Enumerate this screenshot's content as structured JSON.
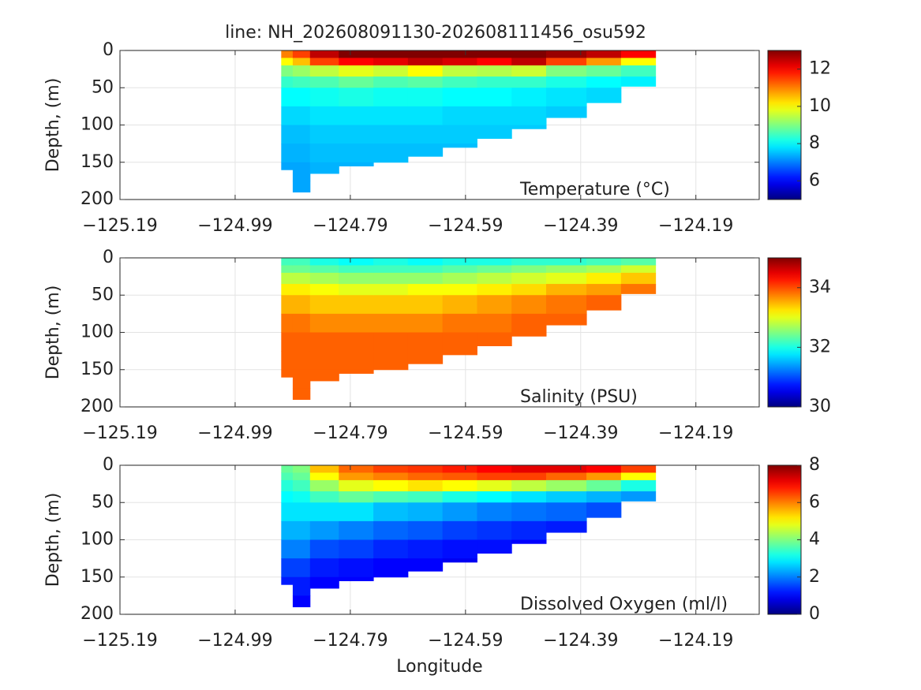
{
  "chart_data": [
    {
      "type": "section",
      "title": "line: NH_202608091130-202608111456_osu592",
      "label": "Temperature (°C)",
      "ylabel": "Depth, (m)",
      "colormap": "jet",
      "grid": true,
      "xlim": [
        -125.19,
        -124.08
      ],
      "ylim": [
        200,
        0
      ],
      "clim": [
        5,
        13
      ],
      "xticks": [
        {
          "value": -125.19,
          "label": "−125.19"
        },
        {
          "value": -124.99,
          "label": "−124.99"
        },
        {
          "value": -124.79,
          "label": "−124.79"
        },
        {
          "value": -124.59,
          "label": "−124.59"
        },
        {
          "value": -124.39,
          "label": "−124.39"
        },
        {
          "value": -124.19,
          "label": "−124.19"
        }
      ],
      "yticks": [
        0,
        50,
        100,
        150,
        200
      ],
      "cticks": [
        6,
        8,
        10,
        12
      ],
      "x": [
        -124.91,
        -124.89,
        -124.86,
        -124.81,
        -124.75,
        -124.69,
        -124.63,
        -124.57,
        -124.51,
        -124.45,
        -124.38,
        -124.32
      ],
      "bottom": [
        160,
        190,
        165,
        155,
        150,
        142,
        130,
        118,
        105,
        90,
        70,
        48
      ],
      "depths": [
        0,
        10,
        20,
        35,
        50,
        75,
        100,
        125,
        150,
        175
      ],
      "values": [
        [
          11,
          10,
          9.0,
          8.4,
          8.0,
          7.7,
          7.5,
          7.4,
          7.3,
          null
        ],
        [
          11.5,
          10.5,
          9.2,
          8.5,
          8.0,
          7.7,
          7.5,
          7.4,
          7.3,
          7.3
        ],
        [
          12.5,
          11.5,
          9.5,
          8.6,
          8.1,
          7.8,
          7.6,
          7.5,
          7.4,
          null
        ],
        [
          13,
          12,
          9.8,
          8.8,
          8.2,
          7.8,
          7.6,
          7.5,
          7.4,
          null
        ],
        [
          13,
          12.2,
          9.6,
          8.6,
          8.1,
          7.8,
          7.6,
          7.5,
          null,
          null
        ],
        [
          13,
          12.5,
          10,
          8.7,
          8.1,
          7.8,
          7.6,
          7.5,
          null,
          null
        ],
        [
          13,
          12.3,
          9.5,
          8.5,
          8.0,
          7.7,
          7.6,
          7.5,
          null,
          null
        ],
        [
          13,
          12,
          9.4,
          8.4,
          8.0,
          7.7,
          7.6,
          null,
          null,
          null
        ],
        [
          13,
          12.5,
          9.6,
          8.4,
          7.9,
          7.7,
          7.6,
          null,
          null,
          null
        ],
        [
          12.8,
          11.5,
          9.0,
          8.2,
          7.8,
          7.6,
          null,
          null,
          null,
          null
        ],
        [
          12.5,
          10.8,
          8.8,
          8.0,
          7.7,
          null,
          null,
          null,
          null,
          null
        ],
        [
          12,
          10,
          8.5,
          7.9,
          null,
          null,
          null,
          null,
          null,
          null
        ]
      ]
    },
    {
      "type": "section",
      "label": "Salinity (PSU)",
      "ylabel": "Depth, (m)",
      "colormap": "jet",
      "grid": true,
      "xlim": [
        -125.19,
        -124.08
      ],
      "ylim": [
        200,
        0
      ],
      "clim": [
        30,
        35
      ],
      "xticks": [
        {
          "value": -125.19,
          "label": "−125.19"
        },
        {
          "value": -124.99,
          "label": "−124.99"
        },
        {
          "value": -124.79,
          "label": "−124.79"
        },
        {
          "value": -124.59,
          "label": "−124.59"
        },
        {
          "value": -124.39,
          "label": "−124.39"
        },
        {
          "value": -124.19,
          "label": "−124.19"
        }
      ],
      "yticks": [
        0,
        50,
        100,
        150,
        200
      ],
      "cticks": [
        30,
        32,
        34
      ],
      "x": [
        -124.91,
        -124.89,
        -124.86,
        -124.81,
        -124.75,
        -124.69,
        -124.63,
        -124.57,
        -124.51,
        -124.45,
        -124.38,
        -124.32
      ],
      "bottom": [
        160,
        190,
        165,
        155,
        150,
        142,
        130,
        118,
        105,
        90,
        70,
        48
      ],
      "depths": [
        0,
        10,
        20,
        35,
        50,
        75,
        100,
        125,
        150,
        175
      ],
      "values": [
        [
          32.2,
          32.4,
          32.8,
          33.2,
          33.5,
          33.8,
          33.9,
          33.9,
          33.9,
          null
        ],
        [
          32.2,
          32.4,
          32.8,
          33.2,
          33.5,
          33.8,
          33.9,
          33.9,
          33.9,
          33.9
        ],
        [
          32.0,
          32.3,
          32.7,
          33.1,
          33.4,
          33.7,
          33.9,
          33.9,
          33.9,
          null
        ],
        [
          31.9,
          32.2,
          32.6,
          33.0,
          33.4,
          33.7,
          33.9,
          33.9,
          33.9,
          null
        ],
        [
          32.0,
          32.2,
          32.6,
          33.0,
          33.4,
          33.7,
          33.9,
          33.9,
          null,
          null
        ],
        [
          31.9,
          32.2,
          32.6,
          33.1,
          33.4,
          33.7,
          33.9,
          33.9,
          null,
          null
        ],
        [
          32.0,
          32.3,
          32.7,
          33.1,
          33.5,
          33.8,
          33.9,
          33.9,
          null,
          null
        ],
        [
          32.0,
          32.4,
          32.8,
          33.2,
          33.6,
          33.8,
          33.9,
          null,
          null,
          null
        ],
        [
          32.1,
          32.5,
          32.9,
          33.3,
          33.7,
          33.9,
          33.9,
          null,
          null,
          null
        ],
        [
          32.1,
          32.6,
          33.0,
          33.5,
          33.8,
          33.9,
          null,
          null,
          null,
          null
        ],
        [
          32.2,
          32.7,
          33.2,
          33.6,
          33.9,
          null,
          null,
          null,
          null,
          null
        ],
        [
          32.3,
          32.9,
          33.4,
          33.8,
          null,
          null,
          null,
          null,
          null,
          null
        ]
      ]
    },
    {
      "type": "section",
      "label": "Dissolved Oxygen (ml/l)",
      "ylabel": "Depth, (m)",
      "xlabel": "Longitude",
      "colormap": "jet",
      "grid": true,
      "xlim": [
        -125.19,
        -124.08
      ],
      "ylim": [
        200,
        0
      ],
      "clim": [
        0,
        8
      ],
      "xticks": [
        {
          "value": -125.19,
          "label": "−125.19"
        },
        {
          "value": -124.99,
          "label": "−124.99"
        },
        {
          "value": -124.79,
          "label": "−124.79"
        },
        {
          "value": -124.59,
          "label": "−124.59"
        },
        {
          "value": -124.39,
          "label": "−124.39"
        },
        {
          "value": -124.19,
          "label": "−124.19"
        }
      ],
      "yticks": [
        0,
        50,
        100,
        150,
        200
      ],
      "cticks": [
        0,
        2,
        4,
        6,
        8
      ],
      "x": [
        -124.91,
        -124.89,
        -124.86,
        -124.81,
        -124.75,
        -124.69,
        -124.63,
        -124.57,
        -124.51,
        -124.45,
        -124.38,
        -124.32
      ],
      "bottom": [
        160,
        190,
        165,
        155,
        150,
        142,
        130,
        118,
        105,
        90,
        70,
        48
      ],
      "depths": [
        0,
        10,
        20,
        35,
        50,
        75,
        100,
        125,
        150,
        175
      ],
      "values": [
        [
          3.8,
          3.6,
          3.3,
          3.0,
          2.8,
          2.4,
          2.0,
          1.5,
          1.2,
          null
        ],
        [
          4.0,
          3.8,
          3.5,
          3.1,
          2.8,
          2.4,
          2.0,
          1.5,
          1.2,
          1.0
        ],
        [
          5.5,
          5.0,
          4.2,
          3.5,
          2.8,
          2.2,
          1.6,
          1.2,
          1.0,
          null
        ],
        [
          6.2,
          5.8,
          4.8,
          3.8,
          2.8,
          2.0,
          1.5,
          1.1,
          1.0,
          null
        ],
        [
          6.5,
          6.0,
          5.0,
          3.6,
          2.5,
          1.8,
          1.3,
          1.0,
          null,
          null
        ],
        [
          6.6,
          6.2,
          5.2,
          3.5,
          2.4,
          1.7,
          1.2,
          1.0,
          null,
          null
        ],
        [
          6.8,
          6.3,
          5.0,
          3.2,
          2.2,
          1.5,
          1.1,
          0.9,
          null,
          null
        ],
        [
          7.0,
          6.5,
          4.8,
          3.0,
          2.0,
          1.4,
          1.1,
          null,
          null,
          null
        ],
        [
          7.2,
          6.5,
          4.5,
          2.8,
          1.9,
          1.3,
          1.0,
          null,
          null,
          null
        ],
        [
          7.2,
          6.2,
          4.2,
          2.6,
          1.8,
          1.2,
          null,
          null,
          null,
          null
        ],
        [
          7.0,
          5.8,
          3.8,
          2.4,
          1.6,
          null,
          null,
          null,
          null,
          null
        ],
        [
          6.5,
          5.0,
          3.2,
          2.2,
          null,
          null,
          null,
          null,
          null,
          null
        ]
      ]
    }
  ]
}
